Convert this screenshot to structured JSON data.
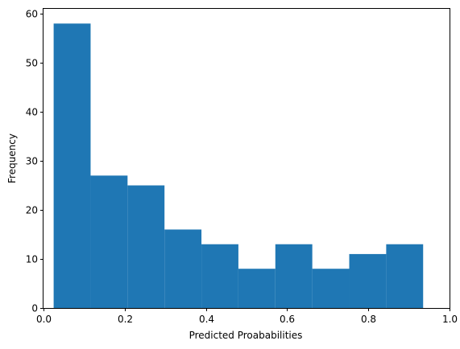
{
  "chart_data": {
    "type": "bar",
    "title": "",
    "xlabel": "Predicted Proababilities",
    "ylabel": "Frequency",
    "xlim": [
      0.0,
      1.0
    ],
    "ylim": [
      0,
      61
    ],
    "grid": false,
    "bar_color": "#1f77b4",
    "bins": [
      {
        "start": 0.025,
        "end": 0.116,
        "value": 58
      },
      {
        "start": 0.116,
        "end": 0.207,
        "value": 27
      },
      {
        "start": 0.207,
        "end": 0.298,
        "value": 25
      },
      {
        "start": 0.298,
        "end": 0.389,
        "value": 16
      },
      {
        "start": 0.389,
        "end": 0.48,
        "value": 13
      },
      {
        "start": 0.48,
        "end": 0.571,
        "value": 8
      },
      {
        "start": 0.571,
        "end": 0.662,
        "value": 13
      },
      {
        "start": 0.662,
        "end": 0.753,
        "value": 8
      },
      {
        "start": 0.753,
        "end": 0.844,
        "value": 11
      },
      {
        "start": 0.844,
        "end": 0.935,
        "value": 13
      }
    ],
    "xticks": [
      {
        "value": 0.0,
        "label": "0.0"
      },
      {
        "value": 0.2,
        "label": "0.2"
      },
      {
        "value": 0.4,
        "label": "0.4"
      },
      {
        "value": 0.6,
        "label": "0.6"
      },
      {
        "value": 0.8,
        "label": "0.8"
      },
      {
        "value": 1.0,
        "label": "1.0"
      }
    ],
    "yticks": [
      {
        "value": 0,
        "label": "0"
      },
      {
        "value": 10,
        "label": "10"
      },
      {
        "value": 20,
        "label": "20"
      },
      {
        "value": 30,
        "label": "30"
      },
      {
        "value": 40,
        "label": "40"
      },
      {
        "value": 50,
        "label": "50"
      },
      {
        "value": 60,
        "label": "60"
      }
    ]
  }
}
